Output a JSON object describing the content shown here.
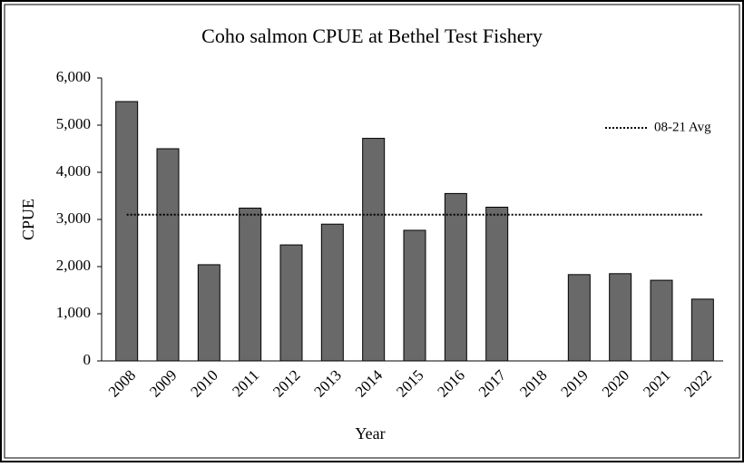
{
  "chart_data": {
    "type": "bar",
    "title": "Coho salmon CPUE at Bethel Test Fishery",
    "x_label": "Year",
    "y_label": "CPUE",
    "categories": [
      "2008",
      "2009",
      "2010",
      "2011",
      "2012",
      "2013",
      "2014",
      "2015",
      "2016",
      "2017",
      "2018",
      "2019",
      "2020",
      "2021",
      "2022"
    ],
    "values": [
      5500,
      4500,
      2040,
      3240,
      2460,
      2900,
      4720,
      2770,
      3550,
      3260,
      null,
      1830,
      1850,
      1710,
      1310
    ],
    "color": "#696969",
    "average": {
      "name": "08-21 Avg",
      "value": 3100,
      "color": "#000000"
    },
    "ylim": [
      0,
      6000
    ],
    "yticks": [
      0,
      {
        "value": 1000,
        "label": "1,000"
      },
      {
        "value": 2000,
        "label": "2,000"
      },
      {
        "value": 3000,
        "label": "3,000"
      },
      {
        "value": 4000,
        "label": "4,000"
      },
      {
        "value": 5000,
        "label": "5,000"
      },
      {
        "value": 6000,
        "label": "6,000"
      }
    ],
    "grid": false,
    "legend": "upper right"
  }
}
